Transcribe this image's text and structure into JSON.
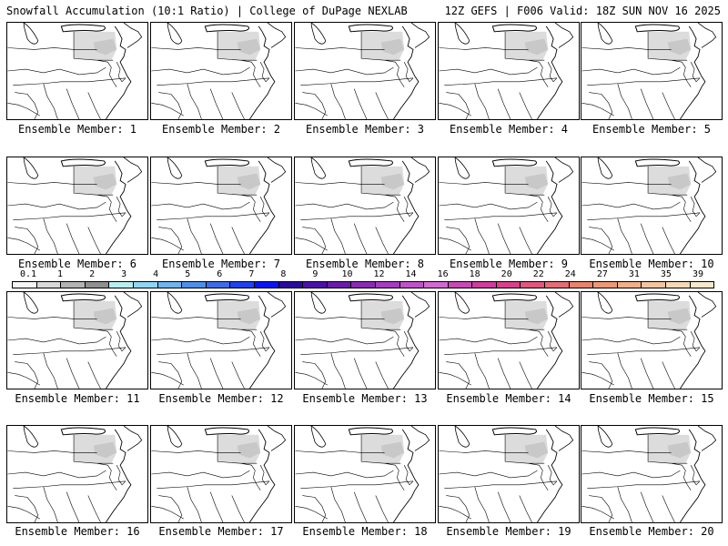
{
  "header": {
    "left": "Snowfall Accumulation (10:1 Ratio) | College of DuPage NEXLAB",
    "right": "12Z GEFS | F006 Valid: 18Z SUN NOV 16 2025"
  },
  "colorbar": {
    "labels": [
      "0.1",
      "1",
      "2",
      "3",
      "4",
      "5",
      "6",
      "7",
      "8",
      "9",
      "10",
      "12",
      "14",
      "16",
      "18",
      "20",
      "22",
      "24",
      "27",
      "31",
      "35",
      "39"
    ],
    "colors": [
      "#f6f6f6",
      "#d9d9d9",
      "#b3b3b3",
      "#8f8f8f",
      "#b8ecf0",
      "#8fd4f2",
      "#6fb4ee",
      "#4f8ee8",
      "#3f6be6",
      "#2140ee",
      "#0a12f6",
      "#2a0a9c",
      "#4a12a8",
      "#6a1aac",
      "#8a2ab4",
      "#a63cc0",
      "#bf52c8",
      "#d16ad0",
      "#c64ab2",
      "#cf3c9c",
      "#d8418a",
      "#e0567c",
      "#e46c72",
      "#e8826c",
      "#ec9876",
      "#f0ae8a",
      "#f3c4a0",
      "#f6d8b8",
      "#f9e8cc"
    ]
  },
  "panels": [
    {
      "label": "Ensemble Member: 1"
    },
    {
      "label": "Ensemble Member: 2"
    },
    {
      "label": "Ensemble Member: 3"
    },
    {
      "label": "Ensemble Member: 4"
    },
    {
      "label": "Ensemble Member: 5"
    },
    {
      "label": "Ensemble Member: 6"
    },
    {
      "label": "Ensemble Member: 7"
    },
    {
      "label": "Ensemble Member: 8"
    },
    {
      "label": "Ensemble Member: 9"
    },
    {
      "label": "Ensemble Member: 10"
    },
    {
      "label": "Ensemble Member: 11"
    },
    {
      "label": "Ensemble Member: 12"
    },
    {
      "label": "Ensemble Member: 13"
    },
    {
      "label": "Ensemble Member: 14"
    },
    {
      "label": "Ensemble Member: 15"
    },
    {
      "label": "Ensemble Member: 16"
    },
    {
      "label": "Ensemble Member: 17"
    },
    {
      "label": "Ensemble Member: 18"
    },
    {
      "label": "Ensemble Member: 19"
    },
    {
      "label": "Ensemble Member: 20"
    }
  ]
}
